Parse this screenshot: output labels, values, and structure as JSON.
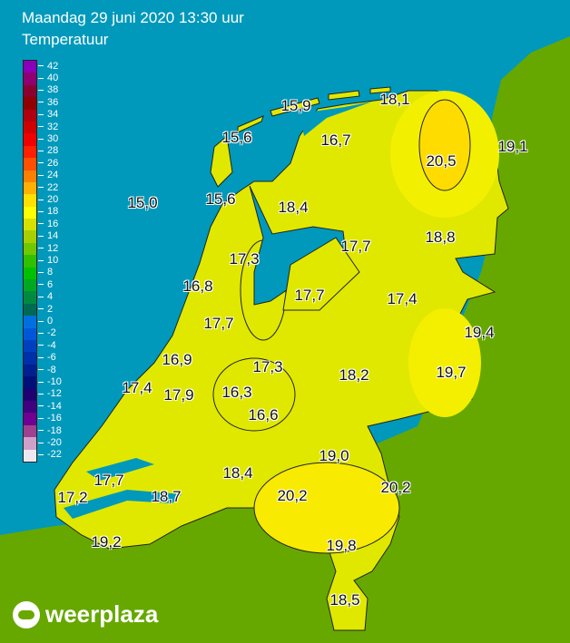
{
  "header": {
    "title": "Maandag 29 juni 2020 13:30 uur",
    "subtitle": "Temperatuur"
  },
  "colors": {
    "sea": "#0099bb",
    "foreign_land": "#66a800",
    "nl_base": "#e0e800",
    "warm": "#ffef00",
    "hot": "#ffd800"
  },
  "legend": {
    "labels": [
      "42",
      "40",
      "38",
      "36",
      "34",
      "32",
      "30",
      "28",
      "26",
      "24",
      "22",
      "20",
      "18",
      "16",
      "14",
      "12",
      "10",
      "8",
      "6",
      "4",
      "2",
      "0",
      "-2",
      "-4",
      "-6",
      "-8",
      "-10",
      "-12",
      "-14",
      "-16",
      "-18",
      "-20",
      "-22"
    ],
    "colors": [
      "#8a00b8",
      "#900070",
      "#8a0030",
      "#900000",
      "#b00010",
      "#d00000",
      "#f00000",
      "#ff2000",
      "#ff5000",
      "#ff8000",
      "#ffb000",
      "#ffe000",
      "#ffff00",
      "#d8e000",
      "#a8d000",
      "#70c800",
      "#30c000",
      "#00c000",
      "#00a820",
      "#008a40",
      "#006a50",
      "#0070e0",
      "#0058d8",
      "#0040c0",
      "#0030a8",
      "#002090",
      "#001078",
      "#200070",
      "#400080",
      "#700090",
      "#a04090",
      "#d0a0c8",
      "#f0e8f0"
    ]
  },
  "temperatures": [
    "15,9",
    "18,1",
    "15,6",
    "16,7",
    "20,5",
    "19,1",
    "15,0",
    "15,6",
    "18,4",
    "17,7",
    "18,8",
    "17,3",
    "16,8",
    "17,7",
    "17,4",
    "17,7",
    "19,4",
    "16,9",
    "17,3",
    "18,2",
    "19,7",
    "17,4",
    "17,9",
    "16,3",
    "16,6",
    "19,0",
    "18,4",
    "20,2",
    "17,7",
    "17,2",
    "18,7",
    "20,2",
    "19,8",
    "19,2",
    "18,5"
  ],
  "logo": "weerplaza"
}
